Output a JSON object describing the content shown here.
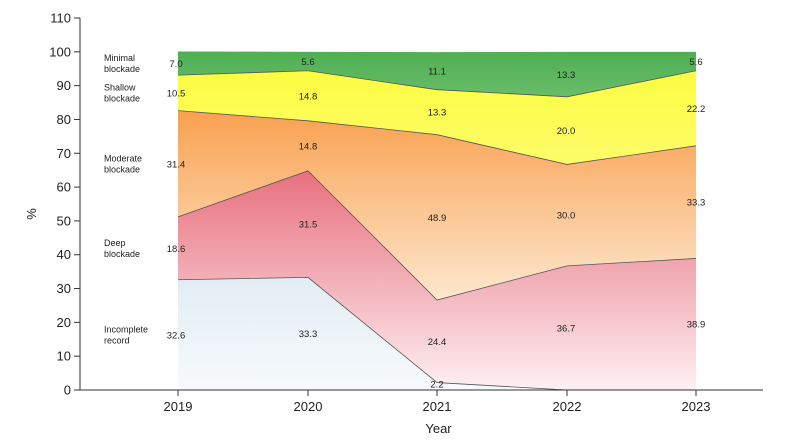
{
  "chart_data": {
    "type": "area",
    "stacked": true,
    "xlabel": "Year",
    "ylabel": "%",
    "ylim": [
      0,
      110
    ],
    "ytick_step": 10,
    "categories": [
      "2019",
      "2020",
      "2021",
      "2022",
      "2023"
    ],
    "series": [
      {
        "name": "Incomplete record",
        "values": [
          32.6,
          33.3,
          2.2,
          0,
          0
        ],
        "labels": [
          "32.6",
          "33.3",
          "2.2",
          "",
          ""
        ],
        "color_top": "#e2edf4",
        "color_bottom": "#f7fafc"
      },
      {
        "name": "Deep blockade",
        "values": [
          18.6,
          31.5,
          24.4,
          36.7,
          38.9
        ],
        "labels": [
          "18.6",
          "31.5",
          "24.4",
          "36.7",
          "38.9"
        ],
        "color_top": "#e8707e",
        "color_bottom": "#fdf0f2"
      },
      {
        "name": "Moderate blockade",
        "values": [
          31.4,
          14.8,
          48.9,
          30.0,
          33.3
        ],
        "labels": [
          "31.4",
          "14.8",
          "48.9",
          "30.0",
          "33.3"
        ],
        "color_top": "#f9a04f",
        "color_bottom": "#fde8cf"
      },
      {
        "name": "Shallow blockade",
        "values": [
          10.5,
          14.8,
          13.3,
          20.0,
          22.2
        ],
        "labels": [
          "10.5",
          "14.8",
          "13.3",
          "20.0",
          "22.2"
        ],
        "color_top": "#fcfc40",
        "color_bottom": "#fcfc6a"
      },
      {
        "name": "Minimal blockade",
        "values": [
          7.0,
          5.6,
          11.1,
          13.3,
          5.6
        ],
        "labels": [
          "7.0",
          "5.6",
          "11.1",
          "13.3",
          "5.6"
        ],
        "color_top": "#4faf52",
        "color_bottom": "#68bd69"
      }
    ],
    "legend": {
      "placement": "left inside plot",
      "entries": [
        {
          "lines": [
            "Minimal",
            "blockade"
          ],
          "series": "Minimal blockade"
        },
        {
          "lines": [
            "Shallow",
            "blockade"
          ],
          "series": "Shallow blockade"
        },
        {
          "lines": [
            "Moderate",
            "blockade"
          ],
          "series": "Moderate blockade"
        },
        {
          "lines": [
            "Deep",
            "blockade"
          ],
          "series": "Deep blockade"
        },
        {
          "lines": [
            "Incomplete",
            "record"
          ],
          "series": "Incomplete record"
        }
      ]
    },
    "grid": false
  }
}
